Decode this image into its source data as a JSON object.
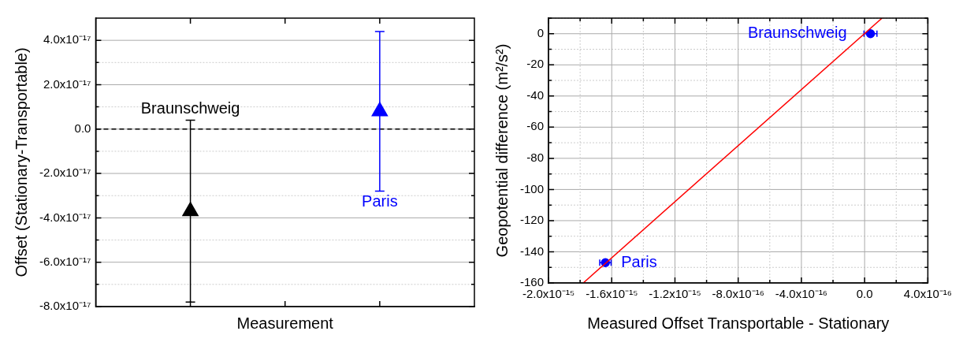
{
  "chart_data": [
    {
      "type": "scatter",
      "xlabel": "Measurement",
      "ylabel": "Offset (Stationary-Transportable)",
      "categories": [
        null,
        null,
        null,
        null,
        null
      ],
      "marker": "triangle",
      "grid": "y",
      "tick_labels": "y",
      "legend": false,
      "ylim": [
        -8e-17,
        5e-17
      ],
      "yticks": [
        {
          "value": -8e-17,
          "label": "-8.0x10⁻¹⁷"
        },
        {
          "value": -7e-17,
          "label": null
        },
        {
          "value": -6e-17,
          "label": "-6.0x10⁻¹⁷"
        },
        {
          "value": -5e-17,
          "label": null
        },
        {
          "value": -4e-17,
          "label": "-4.0x10⁻¹⁷"
        },
        {
          "value": -3e-17,
          "label": null
        },
        {
          "value": -2e-17,
          "label": "-2.0x10⁻¹⁷"
        },
        {
          "value": -1e-17,
          "label": null
        },
        {
          "value": 0,
          "label": "0.0"
        },
        {
          "value": 1e-17,
          "label": null
        },
        {
          "value": 2e-17,
          "label": "2.0x10⁻¹⁷"
        },
        {
          "value": 3e-17,
          "label": null
        },
        {
          "value": 4e-17,
          "label": "4.0x10⁻¹⁷"
        }
      ],
      "ref_lines": [
        {
          "axis": "y",
          "value": 0,
          "color": "#000000",
          "line_style": "dashed"
        }
      ],
      "series": [
        {
          "name": "Braunschweig",
          "color": "#000000",
          "values": [
            null,
            -3.7e-17,
            null,
            null,
            null
          ],
          "errors": [
            null,
            4.1e-17,
            null,
            null,
            null
          ]
        },
        {
          "name": "Paris",
          "color": "#0000ff",
          "values": [
            null,
            null,
            null,
            8e-18,
            null
          ],
          "errors": [
            null,
            null,
            null,
            3.6e-17,
            null
          ]
        }
      ]
    },
    {
      "type": "scatter",
      "xlabel": "Measured Offset Transportable - Stationary",
      "ylabel": "Geopotential difference (m²/s²)",
      "marker": "circle",
      "grid": true,
      "legend": false,
      "xlim": [
        -2e-15,
        4e-16
      ],
      "xticks": [
        {
          "value": -2e-15,
          "label": "-2.0x10⁻¹⁵"
        },
        {
          "value": -1.8e-15,
          "label": null
        },
        {
          "value": -1.6e-15,
          "label": "-1.6x10⁻¹⁵"
        },
        {
          "value": -1.4e-15,
          "label": null
        },
        {
          "value": -1.2e-15,
          "label": "-1.2x10⁻¹⁵"
        },
        {
          "value": -1e-15,
          "label": null
        },
        {
          "value": -8e-16,
          "label": "-8.0x10⁻¹⁶"
        },
        {
          "value": -6e-16,
          "label": null
        },
        {
          "value": -4e-16,
          "label": "-4.0x10⁻¹⁶"
        },
        {
          "value": -2e-16,
          "label": null
        },
        {
          "value": 0,
          "label": "0.0"
        },
        {
          "value": 2e-16,
          "label": null
        },
        {
          "value": 4e-16,
          "label": "4.0x10⁻¹⁶"
        }
      ],
      "ylim": [
        -160,
        10
      ],
      "yticks": [
        -160,
        {
          "value": -150,
          "label": null
        },
        -140,
        {
          "value": -130,
          "label": null
        },
        -120,
        {
          "value": -110,
          "label": null
        },
        -100,
        {
          "value": -90,
          "label": null
        },
        -80,
        {
          "value": -70,
          "label": null
        },
        -60,
        {
          "value": -50,
          "label": null
        },
        -40,
        {
          "value": -30,
          "label": null
        },
        -20,
        {
          "value": -10,
          "label": null
        },
        0,
        {
          "value": 10,
          "label": null
        }
      ],
      "series": [
        {
          "type": "line",
          "color": "#ff0000",
          "marker": "none",
          "x": [
            -1.78e-15,
            1.1e-16
          ],
          "values": [
            -160,
            10
          ]
        },
        {
          "name": "Braunschweig",
          "color": "#0000ff",
          "x": [
            3.7e-17
          ],
          "values": [
            0
          ],
          "xerrors": [
            4.1e-17
          ]
        },
        {
          "name": "Paris",
          "color": "#0000ff",
          "x": [
            -1.64e-15
          ],
          "values": [
            -147
          ],
          "xerrors": [
            3.6e-17
          ]
        }
      ]
    }
  ]
}
